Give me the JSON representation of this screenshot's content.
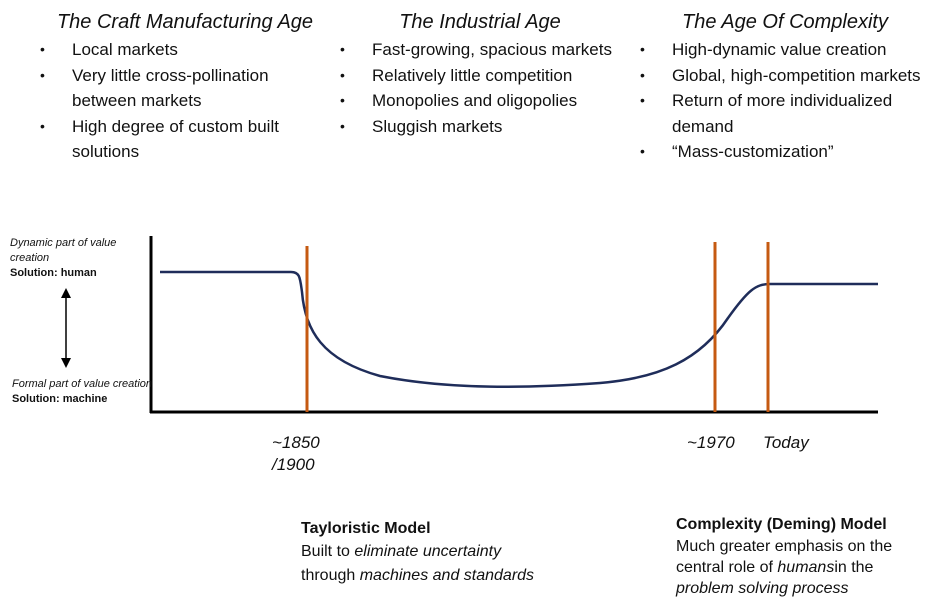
{
  "columns": [
    {
      "title": "The Craft Manufacturing Age",
      "bullets": [
        "Local markets",
        "Very little cross-pollination between markets",
        "High degree of custom built solutions"
      ]
    },
    {
      "title": "The Industrial Age",
      "bullets": [
        "Fast-growing, spacious markets",
        "Relatively little competition",
        "Monopolies and oligopolies",
        "Sluggish markets"
      ]
    },
    {
      "title": "The Age Of Complexity",
      "bullets": [
        "High-dynamic value creation",
        "Global, high-competition markets",
        "Return of more individualized demand",
        "“Mass-customization”"
      ]
    }
  ],
  "axis": {
    "dynamic_label": "Dynamic part of value creation",
    "dynamic_solution": "Solution: human",
    "formal_label": "Formal part of value creation",
    "formal_solution": "Solution: machine"
  },
  "markers": {
    "m1850": "~1850 /1900",
    "m1970": "~1970",
    "today": "Today"
  },
  "models": {
    "taylor": {
      "title": "Tayloristic Model",
      "line1_pre": "Built to ",
      "line1_em": "eliminate uncertainty",
      "line2_pre": "through ",
      "line2_em": "machines and standards"
    },
    "complexity": {
      "title": "Complexity (Deming) Model",
      "line1": "Much greater emphasis on the",
      "line2_pre": "central role of ",
      "line2_em": "humans",
      "line2_post": "in the",
      "line3_em": "problem solving process"
    }
  },
  "colors": {
    "curve": "#1f2d5a",
    "marker": "#c55a11",
    "axis": "#000000"
  }
}
